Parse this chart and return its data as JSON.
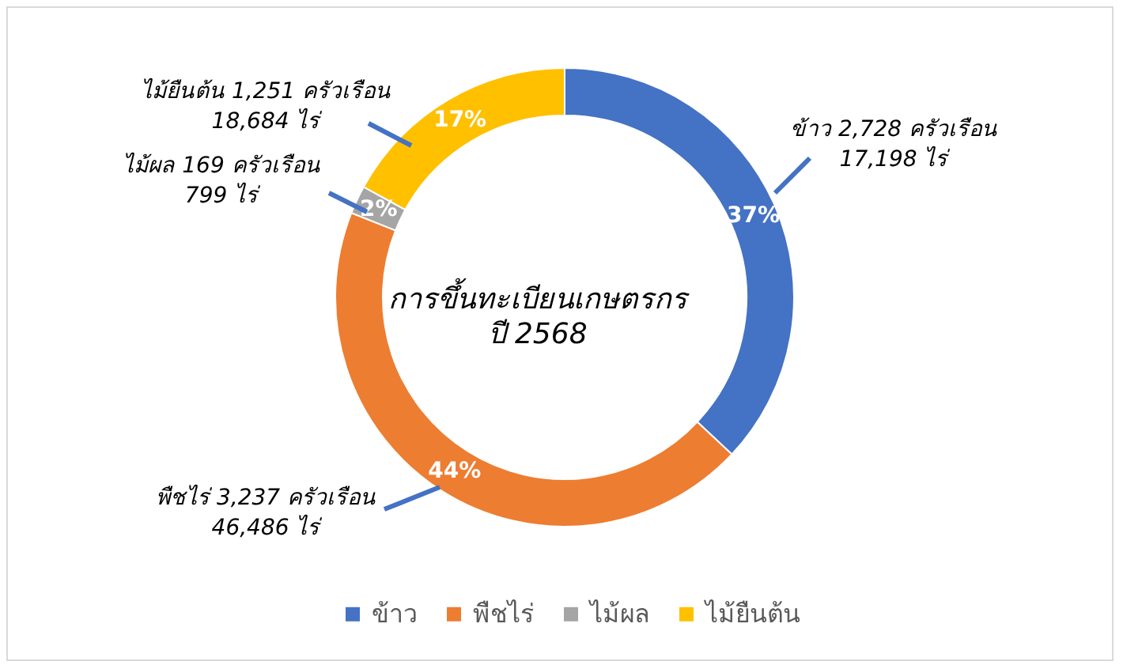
{
  "chart_data": {
    "type": "donut",
    "title": "การขึ้นทะเบียนเกษตรกร\nปี 2568",
    "categories": [
      "ข้าว",
      "พืชไร่",
      "ไม้ผล",
      "ไม้ยืนต้น"
    ],
    "values": [
      37,
      44,
      2,
      17
    ],
    "colors": [
      "#4472c4",
      "#ed7d31",
      "#a5a5a5",
      "#ffc000"
    ],
    "value_labels": [
      "37%",
      "44%",
      "2%",
      "17%"
    ],
    "annotations": [
      "ข้าว 2,728 ครัวเรือน\n17,198 ไร่",
      "พืชไร่ 3,237 ครัวเรือน\n46,486 ไร่",
      "ไม้ผล 169 ครัวเรือน\n799 ไร่",
      "ไม้ยืนต้น 1,251 ครัวเรือน\n18,684 ไร่"
    ],
    "legend": "bottom"
  }
}
